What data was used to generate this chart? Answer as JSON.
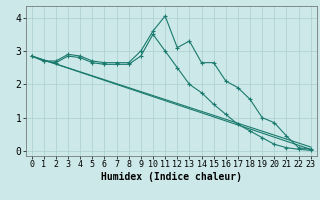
{
  "title": "",
  "xlabel": "Humidex (Indice chaleur)",
  "ylabel": "",
  "background_color": "#cce8e8",
  "line_color": "#1a7a6e",
  "grid_color": "#aacfcf",
  "xlim": [
    -0.5,
    23.5
  ],
  "ylim": [
    -0.15,
    4.35
  ],
  "x_ticks": [
    0,
    1,
    2,
    3,
    4,
    5,
    6,
    7,
    8,
    9,
    10,
    11,
    12,
    13,
    14,
    15,
    16,
    17,
    18,
    19,
    20,
    21,
    22,
    23
  ],
  "y_ticks": [
    0,
    1,
    2,
    3,
    4
  ],
  "line1": {
    "x": [
      0,
      1,
      2,
      3,
      4,
      5,
      6,
      7,
      8,
      9,
      10,
      11,
      12,
      13,
      14,
      15,
      16,
      17,
      18,
      19,
      20,
      21,
      22,
      23
    ],
    "y": [
      2.85,
      2.7,
      2.7,
      2.9,
      2.85,
      2.7,
      2.65,
      2.65,
      2.65,
      3.0,
      3.6,
      4.05,
      3.1,
      3.3,
      2.65,
      2.65,
      2.1,
      1.9,
      1.55,
      1.0,
      0.85,
      0.45,
      0.1,
      0.05
    ]
  },
  "line2": {
    "x": [
      0,
      1,
      2,
      3,
      4,
      5,
      6,
      7,
      8,
      9,
      10,
      11,
      12,
      13,
      14,
      15,
      16,
      17,
      18,
      19,
      20,
      21,
      22,
      23
    ],
    "y": [
      2.85,
      2.7,
      2.65,
      2.85,
      2.8,
      2.65,
      2.6,
      2.6,
      2.6,
      2.85,
      3.5,
      3.0,
      2.5,
      2.0,
      1.75,
      1.4,
      1.1,
      0.8,
      0.6,
      0.4,
      0.2,
      0.1,
      0.05,
      0.02
    ]
  },
  "line3": {
    "x": [
      0,
      23
    ],
    "y": [
      2.85,
      0.05
    ]
  },
  "line4": {
    "x": [
      0,
      23
    ],
    "y": [
      2.85,
      0.12
    ]
  }
}
